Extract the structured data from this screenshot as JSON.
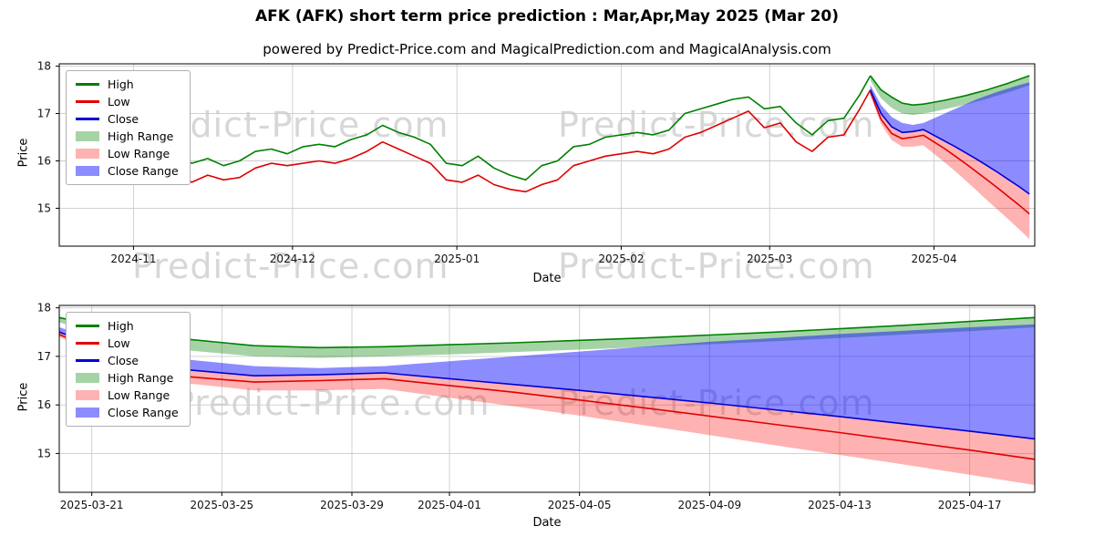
{
  "title": "AFK (AFK) short term price prediction : Mar,Apr,May 2025 (Mar 20)",
  "subtitle": "powered by Predict-Price.com and MagicalPrediction.com and MagicalAnalysis.com",
  "watermark": "Predict-Price.com",
  "colors": {
    "high_line": "#008000",
    "low_line": "#e10000",
    "close_line": "#0000d6",
    "high_fill": "rgba(0,128,0,0.35)",
    "low_fill": "rgba(255,0,0,0.30)",
    "close_fill": "rgba(0,0,255,0.45)",
    "grid": "#cccccc",
    "frame": "#000000",
    "tick_text": "#111111"
  },
  "legend": [
    {
      "label": "High",
      "swatch": "line",
      "color": "#008000"
    },
    {
      "label": "Low",
      "swatch": "line",
      "color": "#e10000"
    },
    {
      "label": "Close",
      "swatch": "line",
      "color": "#0000d6"
    },
    {
      "label": "High Range",
      "swatch": "patch",
      "color": "rgba(0,128,0,0.35)"
    },
    {
      "label": "Low Range",
      "swatch": "patch",
      "color": "rgba(255,0,0,0.30)"
    },
    {
      "label": "Close Range",
      "swatch": "patch",
      "color": "rgba(0,0,255,0.45)"
    }
  ],
  "chart_data": [
    {
      "type": "line",
      "name": "history-and-forecast",
      "xlabel": "Date",
      "ylabel": "Price",
      "ylim": [
        14.2,
        18.05
      ],
      "yticks": [
        15,
        16,
        17,
        18
      ],
      "xlim": [
        "2024-10-18",
        "2025-04-20"
      ],
      "xticks": [
        {
          "date": "2024-11-01",
          "label": "2024-11"
        },
        {
          "date": "2024-12-01",
          "label": "2024-12"
        },
        {
          "date": "2025-01-01",
          "label": "2025-01"
        },
        {
          "date": "2025-02-01",
          "label": "2025-02"
        },
        {
          "date": "2025-03-01",
          "label": "2025-03"
        },
        {
          "date": "2025-04-01",
          "label": "2025-04"
        }
      ],
      "history": {
        "dates": [
          "2024-10-25",
          "2024-10-28",
          "2024-10-31",
          "2024-11-03",
          "2024-11-06",
          "2024-11-09",
          "2024-11-12",
          "2024-11-15",
          "2024-11-18",
          "2024-11-21",
          "2024-11-24",
          "2024-11-27",
          "2024-11-30",
          "2024-12-03",
          "2024-12-06",
          "2024-12-09",
          "2024-12-12",
          "2024-12-15",
          "2024-12-18",
          "2024-12-21",
          "2024-12-24",
          "2024-12-27",
          "2024-12-30",
          "2025-01-02",
          "2025-01-05",
          "2025-01-08",
          "2025-01-11",
          "2025-01-14",
          "2025-01-17",
          "2025-01-20",
          "2025-01-23",
          "2025-01-26",
          "2025-01-29",
          "2025-02-01",
          "2025-02-04",
          "2025-02-07",
          "2025-02-10",
          "2025-02-13",
          "2025-02-16",
          "2025-02-19",
          "2025-02-22",
          "2025-02-25",
          "2025-02-28",
          "2025-03-03",
          "2025-03-06",
          "2025-03-09",
          "2025-03-12",
          "2025-03-15",
          "2025-03-18",
          "2025-03-20"
        ],
        "high": [
          17.0,
          17.15,
          16.85,
          16.6,
          16.35,
          16.1,
          15.95,
          16.05,
          15.9,
          16.0,
          16.2,
          16.25,
          16.15,
          16.3,
          16.35,
          16.3,
          16.45,
          16.55,
          16.75,
          16.6,
          16.5,
          16.35,
          15.95,
          15.9,
          16.1,
          15.85,
          15.7,
          15.6,
          15.9,
          16.0,
          16.3,
          16.35,
          16.5,
          16.55,
          16.6,
          16.55,
          16.65,
          17.0,
          17.1,
          17.2,
          17.3,
          17.35,
          17.1,
          17.15,
          16.8,
          16.55,
          16.85,
          16.9,
          17.4,
          17.8
        ],
        "low": [
          16.6,
          16.7,
          16.45,
          16.2,
          15.95,
          15.7,
          15.55,
          15.7,
          15.6,
          15.65,
          15.85,
          15.95,
          15.9,
          15.95,
          16.0,
          15.95,
          16.05,
          16.2,
          16.4,
          16.25,
          16.1,
          15.95,
          15.6,
          15.55,
          15.7,
          15.5,
          15.4,
          15.35,
          15.5,
          15.6,
          15.9,
          16.0,
          16.1,
          16.15,
          16.2,
          16.15,
          16.25,
          16.5,
          16.6,
          16.75,
          16.9,
          17.05,
          16.7,
          16.8,
          16.4,
          16.2,
          16.5,
          16.55,
          17.1,
          17.5
        ]
      },
      "prediction": {
        "dates": [
          "2025-03-20",
          "2025-03-22",
          "2025-03-24",
          "2025-03-26",
          "2025-03-28",
          "2025-03-30",
          "2025-04-01",
          "2025-04-03",
          "2025-04-05",
          "2025-04-07",
          "2025-04-09",
          "2025-04-11",
          "2025-04-13",
          "2025-04-15",
          "2025-04-17",
          "2025-04-19"
        ],
        "high_max": [
          17.8,
          17.5,
          17.35,
          17.22,
          17.18,
          17.2,
          17.24,
          17.28,
          17.33,
          17.38,
          17.44,
          17.5,
          17.57,
          17.64,
          17.72,
          17.8
        ],
        "high_min": [
          17.7,
          17.32,
          17.12,
          17.0,
          16.97,
          17.0,
          17.04,
          17.09,
          17.14,
          17.19,
          17.25,
          17.31,
          17.38,
          17.45,
          17.52,
          17.6
        ],
        "close_max": [
          17.6,
          17.18,
          16.93,
          16.8,
          16.76,
          16.8,
          16.9,
          17.0,
          17.1,
          17.2,
          17.3,
          17.38,
          17.46,
          17.53,
          17.6,
          17.66
        ],
        "close": [
          17.5,
          17.0,
          16.72,
          16.6,
          16.62,
          16.66,
          16.54,
          16.42,
          16.3,
          16.17,
          16.04,
          15.9,
          15.76,
          15.61,
          15.46,
          15.3
        ],
        "low": [
          17.45,
          16.88,
          16.58,
          16.47,
          16.5,
          16.54,
          16.4,
          16.26,
          16.1,
          15.94,
          15.77,
          15.6,
          15.43,
          15.25,
          15.07,
          14.88
        ],
        "low_min": [
          17.4,
          16.78,
          16.44,
          16.3,
          16.3,
          16.33,
          16.15,
          15.97,
          15.78,
          15.58,
          15.38,
          15.17,
          14.97,
          14.77,
          14.56,
          14.35
        ]
      }
    },
    {
      "type": "line",
      "name": "forecast-zoom",
      "xlabel": "Date",
      "ylabel": "Price",
      "ylim": [
        14.2,
        18.05
      ],
      "yticks": [
        15,
        16,
        17,
        18
      ],
      "xlim": [
        "2025-03-20",
        "2025-04-19"
      ],
      "xticks": [
        {
          "date": "2025-03-21",
          "label": "2025-03-21"
        },
        {
          "date": "2025-03-25",
          "label": "2025-03-25"
        },
        {
          "date": "2025-03-29",
          "label": "2025-03-29"
        },
        {
          "date": "2025-04-01",
          "label": "2025-04-01"
        },
        {
          "date": "2025-04-05",
          "label": "2025-04-05"
        },
        {
          "date": "2025-04-09",
          "label": "2025-04-09"
        },
        {
          "date": "2025-04-13",
          "label": "2025-04-13"
        },
        {
          "date": "2025-04-17",
          "label": "2025-04-17"
        }
      ],
      "prediction": {
        "dates": [
          "2025-03-20",
          "2025-03-22",
          "2025-03-24",
          "2025-03-26",
          "2025-03-28",
          "2025-03-30",
          "2025-04-01",
          "2025-04-03",
          "2025-04-05",
          "2025-04-07",
          "2025-04-09",
          "2025-04-11",
          "2025-04-13",
          "2025-04-15",
          "2025-04-17",
          "2025-04-19"
        ],
        "high_max": [
          17.8,
          17.5,
          17.35,
          17.22,
          17.18,
          17.2,
          17.24,
          17.28,
          17.33,
          17.38,
          17.44,
          17.5,
          17.57,
          17.64,
          17.72,
          17.8
        ],
        "high_min": [
          17.7,
          17.32,
          17.12,
          17.0,
          16.97,
          17.0,
          17.04,
          17.09,
          17.14,
          17.19,
          17.25,
          17.31,
          17.38,
          17.45,
          17.52,
          17.6
        ],
        "close_max": [
          17.6,
          17.18,
          16.93,
          16.8,
          16.76,
          16.8,
          16.9,
          17.0,
          17.1,
          17.2,
          17.3,
          17.38,
          17.46,
          17.53,
          17.6,
          17.66
        ],
        "close": [
          17.5,
          17.0,
          16.72,
          16.6,
          16.62,
          16.66,
          16.54,
          16.42,
          16.3,
          16.17,
          16.04,
          15.9,
          15.76,
          15.61,
          15.46,
          15.3
        ],
        "low": [
          17.45,
          16.88,
          16.58,
          16.47,
          16.5,
          16.54,
          16.4,
          16.26,
          16.1,
          15.94,
          15.77,
          15.6,
          15.43,
          15.25,
          15.07,
          14.88
        ],
        "low_min": [
          17.4,
          16.78,
          16.44,
          16.3,
          16.3,
          16.33,
          16.15,
          15.97,
          15.78,
          15.58,
          15.38,
          15.17,
          14.97,
          14.77,
          14.56,
          14.35
        ]
      }
    }
  ]
}
